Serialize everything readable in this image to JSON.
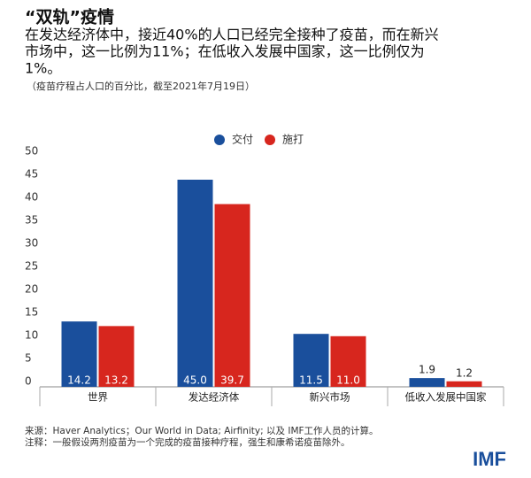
{
  "chart_data": {
    "type": "bar",
    "title": "“双轨”疫情",
    "subtitle": [
      "在发达经济体中，接近40%的人口已经完全接种了疫苗，而在新兴",
      "市场中，这一比例为11%；在低收入发展中国家，这一比例仅为",
      "1%。"
    ],
    "note": "（疫苗疗程占人口的百分比，截至2021年7月19日）",
    "categories": [
      "世界",
      "发达经济体",
      "新兴市场",
      "低收入发展中国家"
    ],
    "series": [
      {
        "name": "交付",
        "color": "#1a4f9c",
        "values": [
          14.2,
          45,
          11.5,
          1.9
        ],
        "value_labels": [
          "14.2",
          "45.0",
          "11.5",
          "1.9"
        ]
      },
      {
        "name": "施打",
        "color": "#d7261e",
        "values": [
          13.2,
          39.7,
          11,
          1.2
        ],
        "value_labels": [
          "13.2",
          "39.7",
          "11.0",
          "1.2"
        ]
      }
    ],
    "ylim": [
      0,
      50
    ],
    "yticks": [
      0,
      5,
      10,
      15,
      20,
      25,
      30,
      35,
      40,
      45,
      50
    ],
    "source": [
      "来源：Haver Analytics；Our World in Data; Airfinity; 以及 IMF工作人员的计算。",
      "注释：一般假设两剂疫苗为一个完成的疫苗接种疗程，强生和康希诺疫苗除外。"
    ],
    "logo": "IMF"
  }
}
